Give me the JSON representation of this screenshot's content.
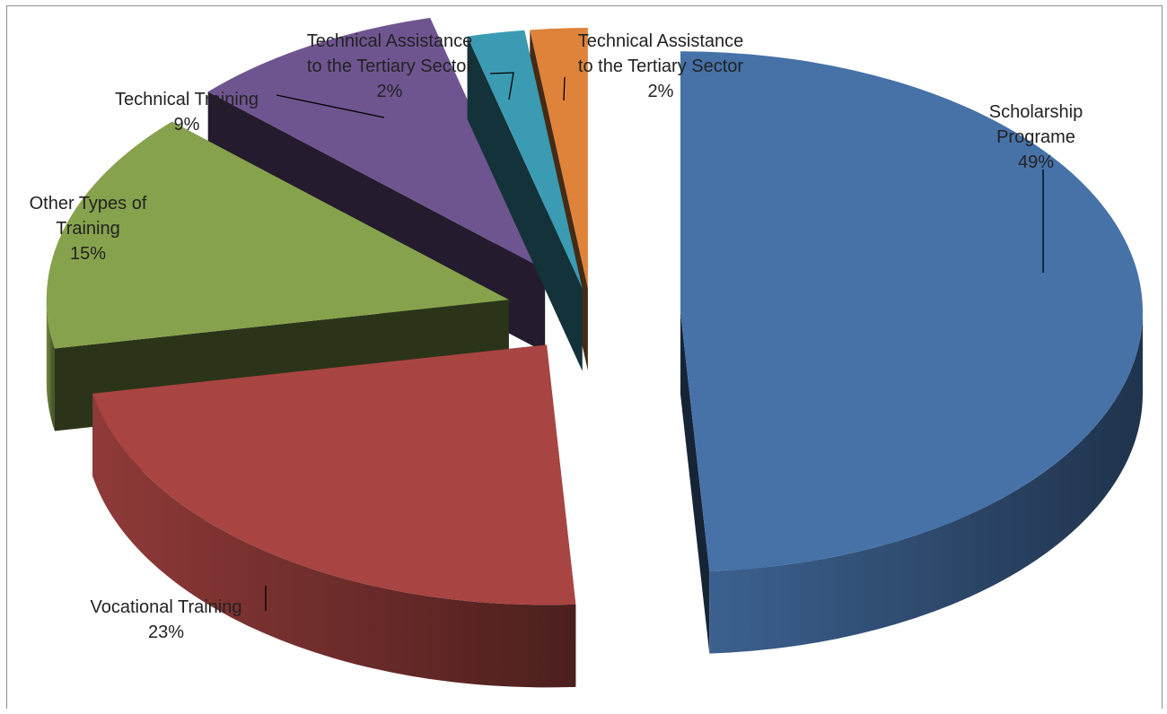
{
  "chart_data": {
    "type": "pie",
    "style": "3d-exploded",
    "title": "",
    "labels": [
      "Scholarship Programe",
      "Vocational Training",
      "Other Types of Training",
      "Technical Training",
      "Technical Assistance to the Tertiary Sector",
      "Technical Assistance to the Tertiary Sector"
    ],
    "values": [
      49,
      23,
      15,
      9,
      2,
      2
    ],
    "value_labels": [
      "49%",
      "23%",
      "15%",
      "9%",
      "2%",
      "2%"
    ],
    "label_lines": [
      [
        "Scholarship",
        "Programe",
        "49%"
      ],
      [
        "Vocational Training",
        "23%"
      ],
      [
        "Other Types of",
        "Training",
        "15%"
      ],
      [
        "Technical Training",
        "9%"
      ],
      [
        "Technical Assistance",
        "to the Tertiary Sector",
        "2%"
      ],
      [
        "Technical Assistance",
        "to the Tertiary Sector",
        "2%"
      ]
    ],
    "colors": [
      "#4672a8",
      "#a84442",
      "#87a24c",
      "#6f5590",
      "#3a9bb3",
      "#df833a"
    ],
    "legend": "none"
  }
}
